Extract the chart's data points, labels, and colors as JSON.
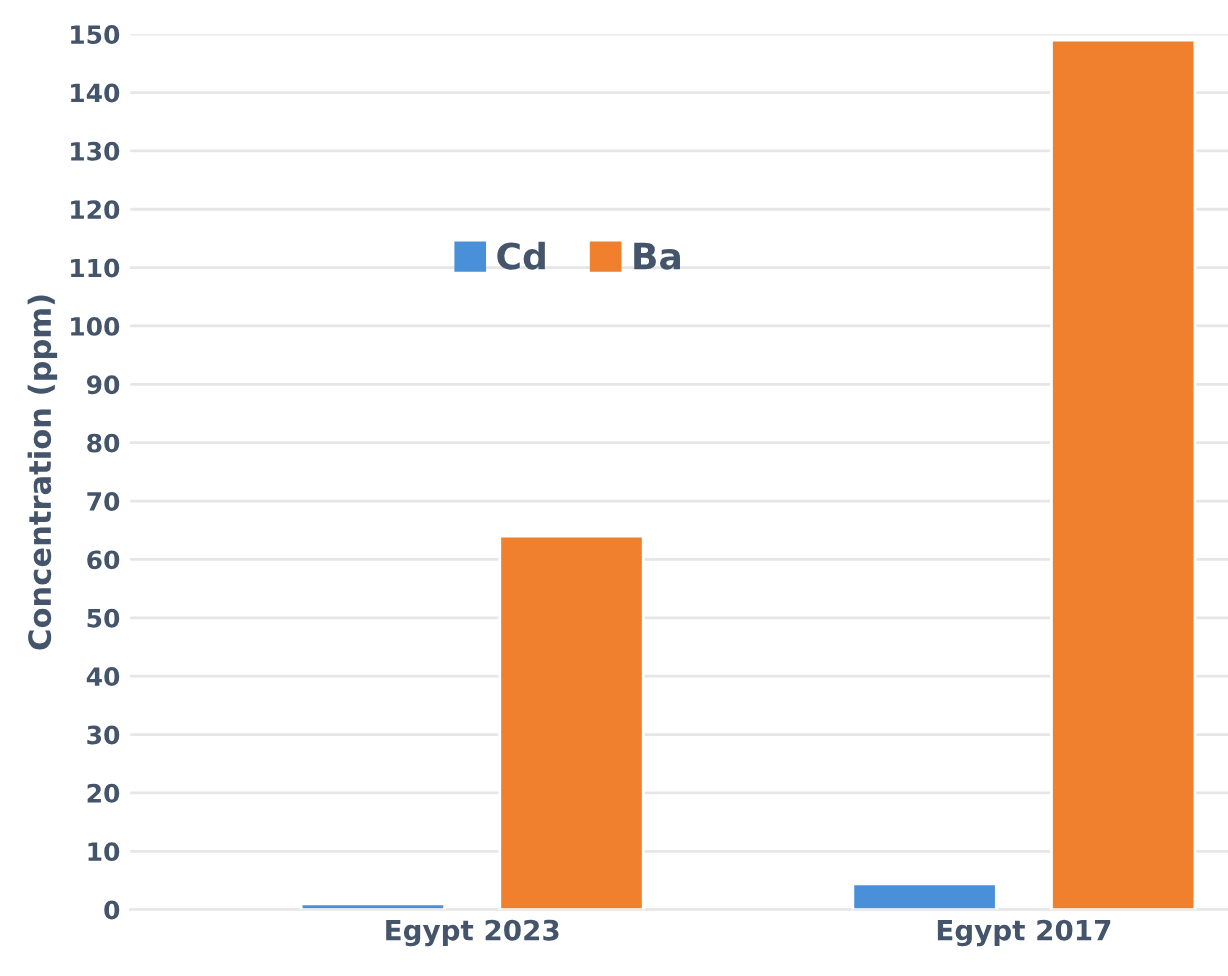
{
  "chart_data": {
    "type": "bar",
    "ylabel": "Concentration (ppm)",
    "categories": [
      "Egypt 2023",
      "Egypt 2017"
    ],
    "series": [
      {
        "name": "Cd",
        "color": "#4a90d9",
        "values": [
          1,
          4.4
        ]
      },
      {
        "name": "Ba",
        "color": "#f07f2e",
        "values": [
          64,
          149
        ]
      }
    ],
    "ylim": [
      0,
      150
    ],
    "yticks": [
      0,
      10,
      20,
      30,
      40,
      50,
      60,
      70,
      80,
      90,
      100,
      110,
      120,
      130,
      140,
      150
    ],
    "grid": "y",
    "legend": "top"
  }
}
